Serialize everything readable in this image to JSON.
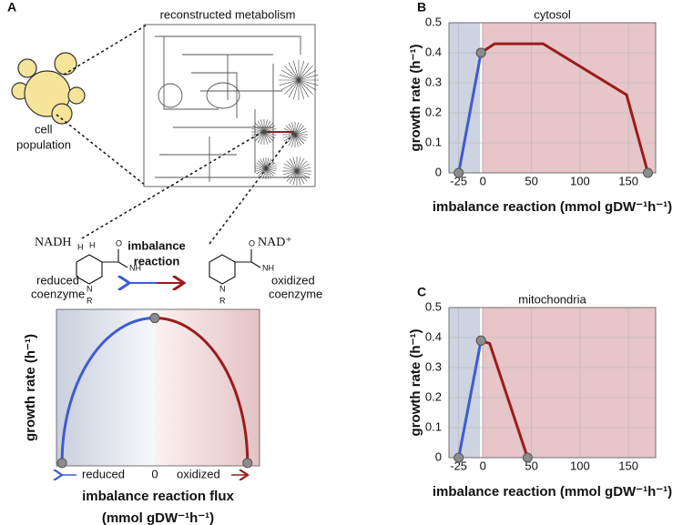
{
  "labels": {
    "panel_a": "A",
    "panel_b": "B",
    "panel_c": "C",
    "network": "reconstructed metabolism",
    "cell": [
      "cell",
      "population"
    ],
    "reaction": [
      "imbalance",
      "reaction"
    ],
    "nadh": "NADH",
    "nad": "NAD⁺",
    "reduced": [
      "reduced",
      "coenzyme"
    ],
    "oxidized": [
      "oxidized",
      "coenzyme"
    ],
    "atoms_left": [
      "H",
      "H",
      "O",
      "NH",
      "N",
      "R"
    ],
    "atoms_right": [
      "O",
      "NH",
      "N",
      "R"
    ]
  },
  "chart_data": [
    {
      "type": "curve",
      "ylabel": "growth rate (h⁻¹)",
      "xlabel": [
        "imbalance reaction flux",
        "(mmol gDW⁻¹h⁻¹)"
      ],
      "annotations": [
        "reduced",
        "oxidized"
      ],
      "xlim": [
        -1.06,
        1.13
      ],
      "ylim": [
        -0.02,
        1.06
      ],
      "xticks": [
        0
      ],
      "shade_at": 0,
      "series": [
        {
          "color": "#3d5ccf",
          "x": [
            -1,
            0
          ],
          "values": [
            0,
            1
          ]
        },
        {
          "color": "#9b1b1b",
          "x": [
            0,
            1
          ],
          "values": [
            1,
            0
          ]
        }
      ]
    },
    {
      "type": "line",
      "title": "cytosol",
      "ylabel": "growth rate (h⁻¹)",
      "xlabel": "imbalance reaction (mmol gDW⁻¹h⁻¹)",
      "xlim": [
        -35,
        178
      ],
      "ylim": [
        0,
        0.5
      ],
      "xticks": [
        -25,
        0,
        50,
        100,
        150
      ],
      "yticks": [
        0,
        0.1,
        0.2,
        0.3,
        0.4,
        0.5
      ],
      "grid": true,
      "shade_at": -2,
      "series": [
        {
          "color": "#3d5ccf",
          "x": [
            -25,
            -2
          ],
          "values": [
            0,
            0.4
          ]
        },
        {
          "color": "#9b1b1b",
          "x": [
            -2,
            12,
            62,
            148,
            170
          ],
          "values": [
            0.4,
            0.43,
            0.43,
            0.26,
            0
          ]
        }
      ]
    },
    {
      "type": "line",
      "title": "mitochondria",
      "ylabel": "growth rate (h⁻¹)",
      "xlabel": "imbalance reaction (mmol gDW⁻¹h⁻¹)",
      "xlim": [
        -35,
        178
      ],
      "ylim": [
        0,
        0.5
      ],
      "xticks": [
        -25,
        0,
        50,
        100,
        150
      ],
      "yticks": [
        0,
        0.1,
        0.2,
        0.3,
        0.4,
        0.5
      ],
      "grid": true,
      "shade_at": -2,
      "series": [
        {
          "color": "#3d5ccf",
          "x": [
            -25,
            -2
          ],
          "values": [
            0,
            0.39
          ]
        },
        {
          "color": "#9b1b1b",
          "x": [
            -2,
            7,
            46
          ],
          "values": [
            0.39,
            0.38,
            0
          ]
        }
      ]
    }
  ]
}
